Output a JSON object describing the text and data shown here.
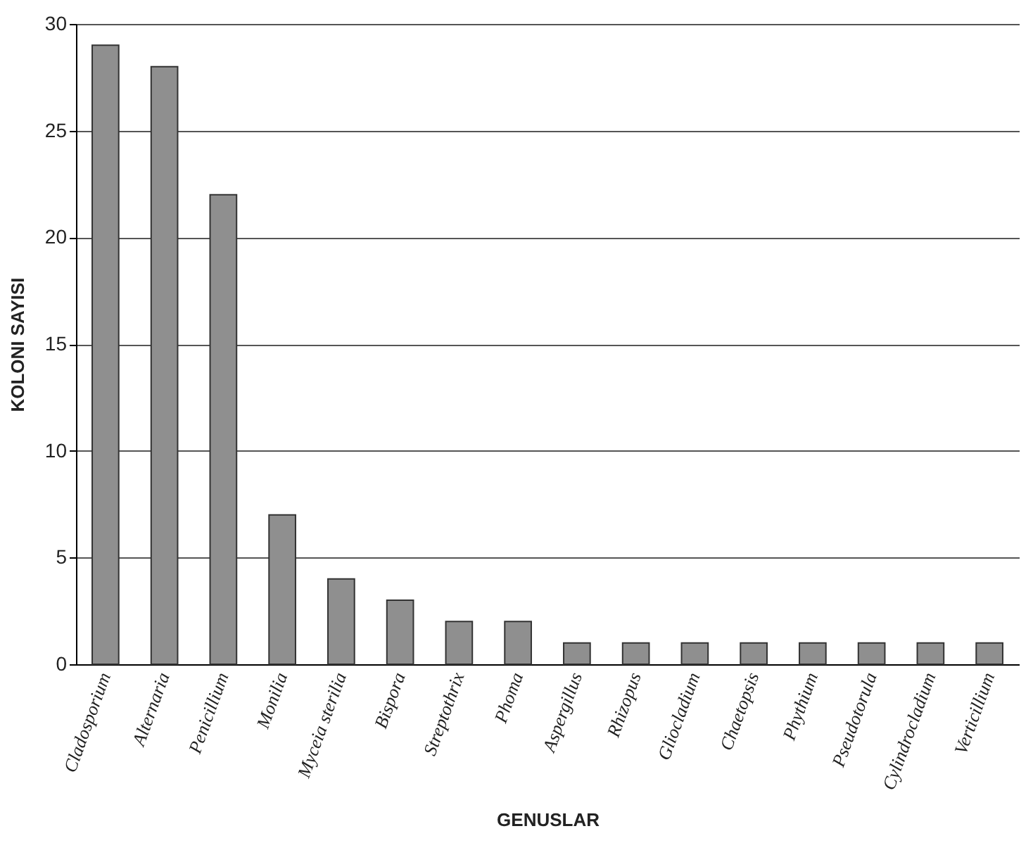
{
  "chart_data": {
    "type": "bar",
    "xlabel": "GENUSLAR",
    "ylabel": "KOLONI SAYISI",
    "categories": [
      "Cladosporium",
      "Alternaria",
      "Penicillium",
      "Monilia",
      "Myceia sterilia",
      "Bispora",
      "Streptothrix",
      "Phoma",
      "Aspergillus",
      "Rhizopus",
      "Gliocladium",
      "Chaetopsis",
      "Phythium",
      "Pseudotorula",
      "Cylindrocladium",
      "Verticillium"
    ],
    "values": [
      29,
      28,
      22,
      7,
      4,
      3,
      2,
      2,
      1,
      1,
      1,
      1,
      1,
      1,
      1,
      1
    ],
    "color": "#8f8f8f",
    "ylim": [
      0,
      30
    ],
    "yticks": [
      0,
      5,
      10,
      15,
      20,
      25,
      30
    ],
    "grid": "y"
  }
}
